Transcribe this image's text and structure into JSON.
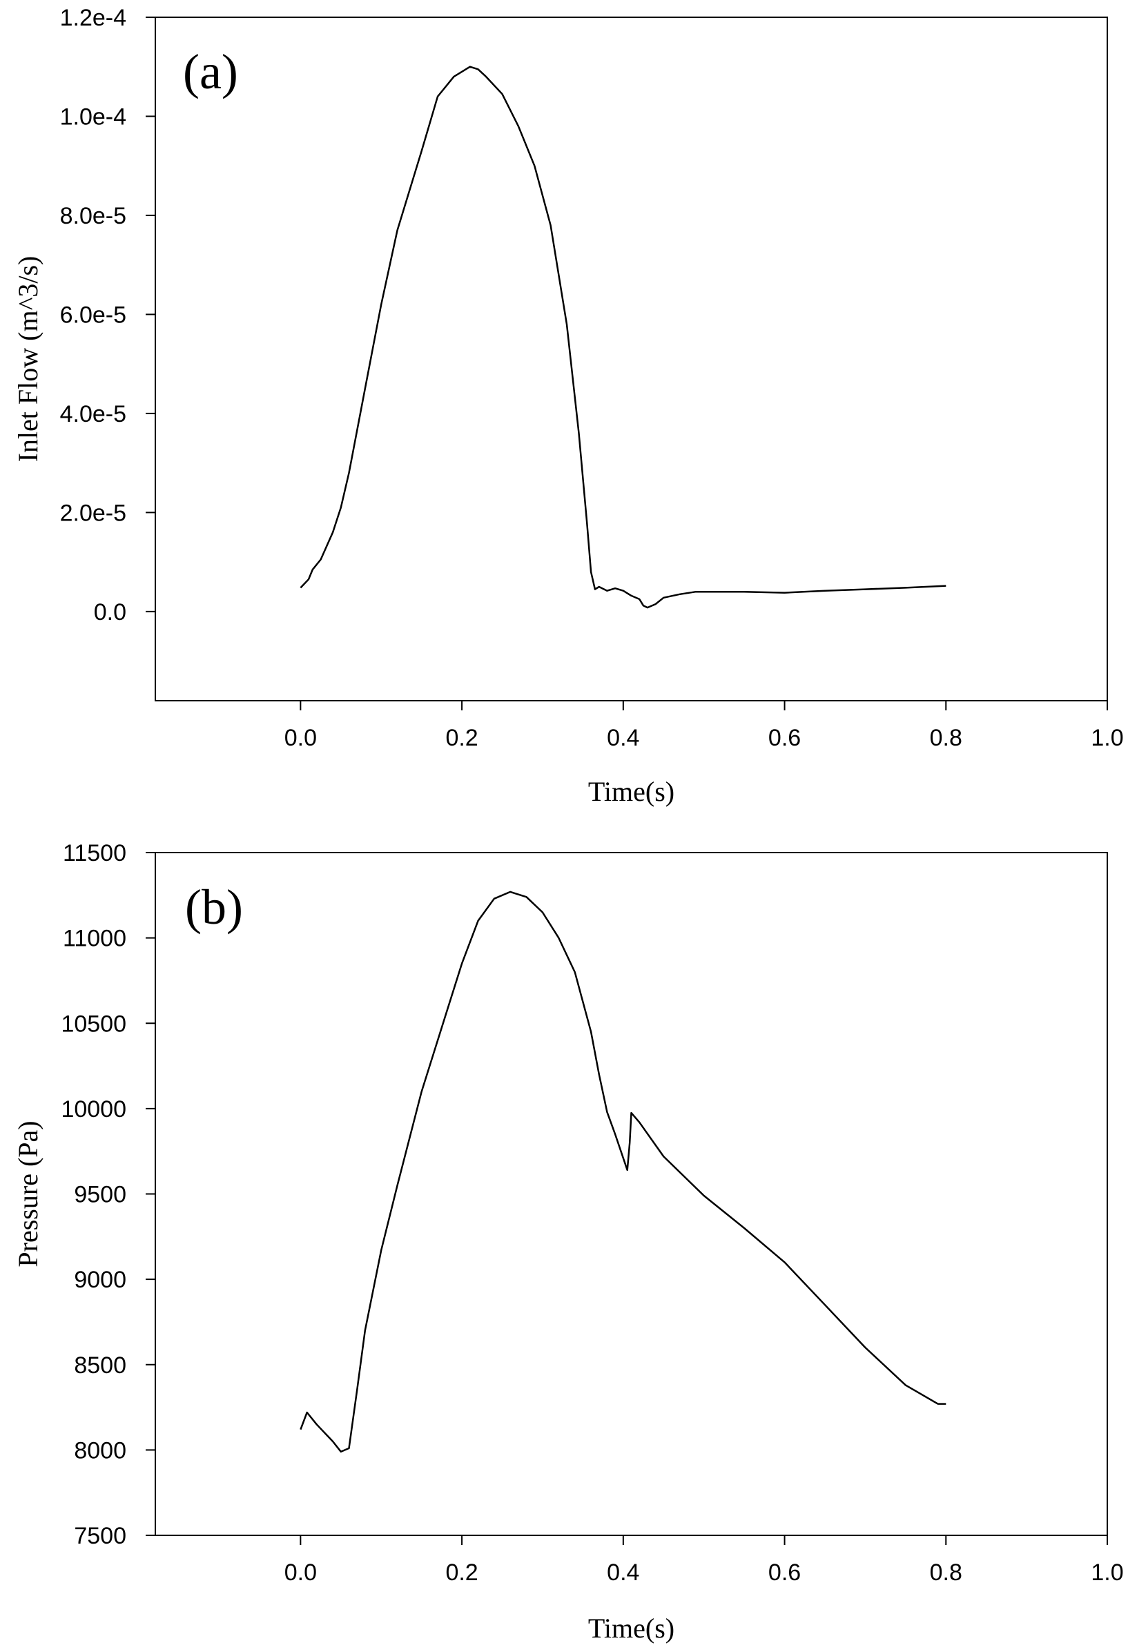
{
  "chart_data": [
    {
      "type": "line",
      "panel_label": "(a)",
      "title": "",
      "xlabel": "Time(s)",
      "ylabel": "Inlet Flow (m^3/s)",
      "xlim": [
        -0.18,
        1.0
      ],
      "ylim": [
        -1.8e-05,
        0.00012
      ],
      "xticks": [
        0.0,
        0.2,
        0.4,
        0.6,
        0.8,
        1.0
      ],
      "xtick_labels": [
        "0.0",
        "0.2",
        "0.4",
        "0.6",
        "0.8",
        "1.0"
      ],
      "yticks": [
        0.0,
        2e-05,
        4e-05,
        6e-05,
        8e-05,
        0.0001,
        0.00012
      ],
      "ytick_labels": [
        "0.0",
        "2.0e-5",
        "4.0e-5",
        "6.0e-5",
        "8.0e-5",
        "1.0e-4",
        "1.2e-4"
      ],
      "grid": false,
      "series": [
        {
          "x": [
            0.0,
            0.01,
            0.015,
            0.025,
            0.04,
            0.05,
            0.06,
            0.08,
            0.1,
            0.12,
            0.15,
            0.17,
            0.19,
            0.21,
            0.22,
            0.23,
            0.25,
            0.27,
            0.29,
            0.31,
            0.33,
            0.345,
            0.355,
            0.36,
            0.365,
            0.37,
            0.38,
            0.39,
            0.4,
            0.41,
            0.42,
            0.425,
            0.43,
            0.44,
            0.45,
            0.47,
            0.49,
            0.55,
            0.6,
            0.65,
            0.7,
            0.75,
            0.8
          ],
          "y": [
            4.8e-06,
            6.5e-06,
            8.5e-06,
            1.05e-05,
            1.6e-05,
            2.1e-05,
            2.8e-05,
            4.5e-05,
            6.2e-05,
            7.7e-05,
            9.3e-05,
            0.000104,
            0.000108,
            0.00011,
            0.0001095,
            0.000108,
            0.0001045,
            9.8e-05,
            9e-05,
            7.8e-05,
            5.8e-05,
            3.6e-05,
            1.8e-05,
            8e-06,
            4.5e-06,
            5e-06,
            4.2e-06,
            4.7e-06,
            4.2e-06,
            3.2e-06,
            2.5e-06,
            1.2e-06,
            8e-07,
            1.5e-06,
            2.8e-06,
            3.5e-06,
            4e-06,
            4e-06,
            3.8e-06,
            4.2e-06,
            4.5e-06,
            4.8e-06,
            5.2e-06
          ]
        }
      ]
    },
    {
      "type": "line",
      "panel_label": "(b)",
      "title": "",
      "xlabel": "Time(s)",
      "ylabel": "Pressure (Pa)",
      "xlim": [
        -0.18,
        1.0
      ],
      "ylim": [
        7500,
        11500
      ],
      "xticks": [
        0.0,
        0.2,
        0.4,
        0.6,
        0.8,
        1.0
      ],
      "xtick_labels": [
        "0.0",
        "0.2",
        "0.4",
        "0.6",
        "0.8",
        "1.0"
      ],
      "yticks": [
        7500,
        8000,
        8500,
        9000,
        9500,
        10000,
        10500,
        11000,
        11500
      ],
      "ytick_labels": [
        "7500",
        "8000",
        "8500",
        "9000",
        "9500",
        "10000",
        "10500",
        "11000",
        "11500"
      ],
      "grid": false,
      "series": [
        {
          "x": [
            0.0,
            0.008,
            0.02,
            0.04,
            0.05,
            0.055,
            0.06,
            0.07,
            0.08,
            0.1,
            0.12,
            0.15,
            0.18,
            0.2,
            0.22,
            0.24,
            0.26,
            0.28,
            0.3,
            0.32,
            0.34,
            0.36,
            0.37,
            0.38,
            0.39,
            0.405,
            0.408,
            0.41,
            0.42,
            0.45,
            0.5,
            0.55,
            0.6,
            0.65,
            0.7,
            0.75,
            0.79,
            0.8
          ],
          "y": [
            8120,
            8220,
            8150,
            8050,
            7990,
            8000,
            8010,
            8350,
            8700,
            9170,
            9550,
            10100,
            10550,
            10850,
            11100,
            11230,
            11270,
            11240,
            11150,
            11000,
            10800,
            10450,
            10200,
            9980,
            9850,
            9640,
            9800,
            9975,
            9920,
            9720,
            9490,
            9300,
            9100,
            8850,
            8600,
            8380,
            8270,
            8270
          ]
        }
      ]
    }
  ]
}
